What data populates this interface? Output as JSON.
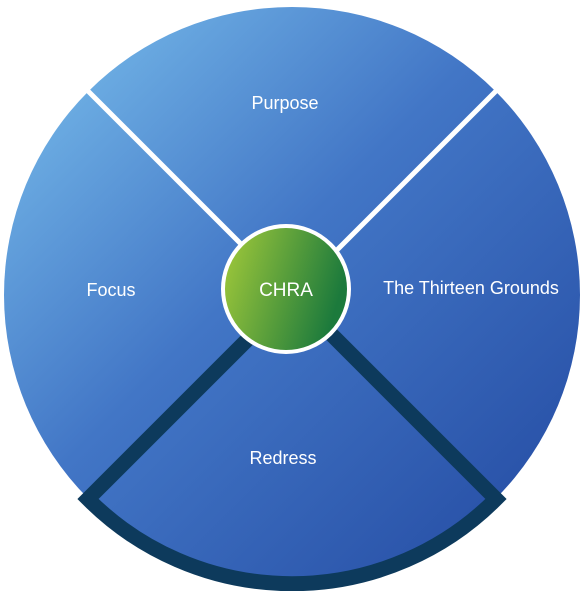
{
  "diagram": {
    "center": {
      "label": "CHRA"
    },
    "segments": [
      {
        "id": "purpose",
        "label": "Purpose"
      },
      {
        "id": "grounds",
        "label": "The Thirteen Grounds"
      },
      {
        "id": "redress",
        "label": "Redress",
        "highlighted": true
      },
      {
        "id": "focus",
        "label": "Focus"
      }
    ],
    "colors": {
      "segment_light": "#7dc3ee",
      "segment_dark": "#2248a0",
      "divider": "#ffffff",
      "highlight_border": "#0d3a5c",
      "center_light": "#a6cc3a",
      "center_dark": "#1c7a3c"
    }
  }
}
